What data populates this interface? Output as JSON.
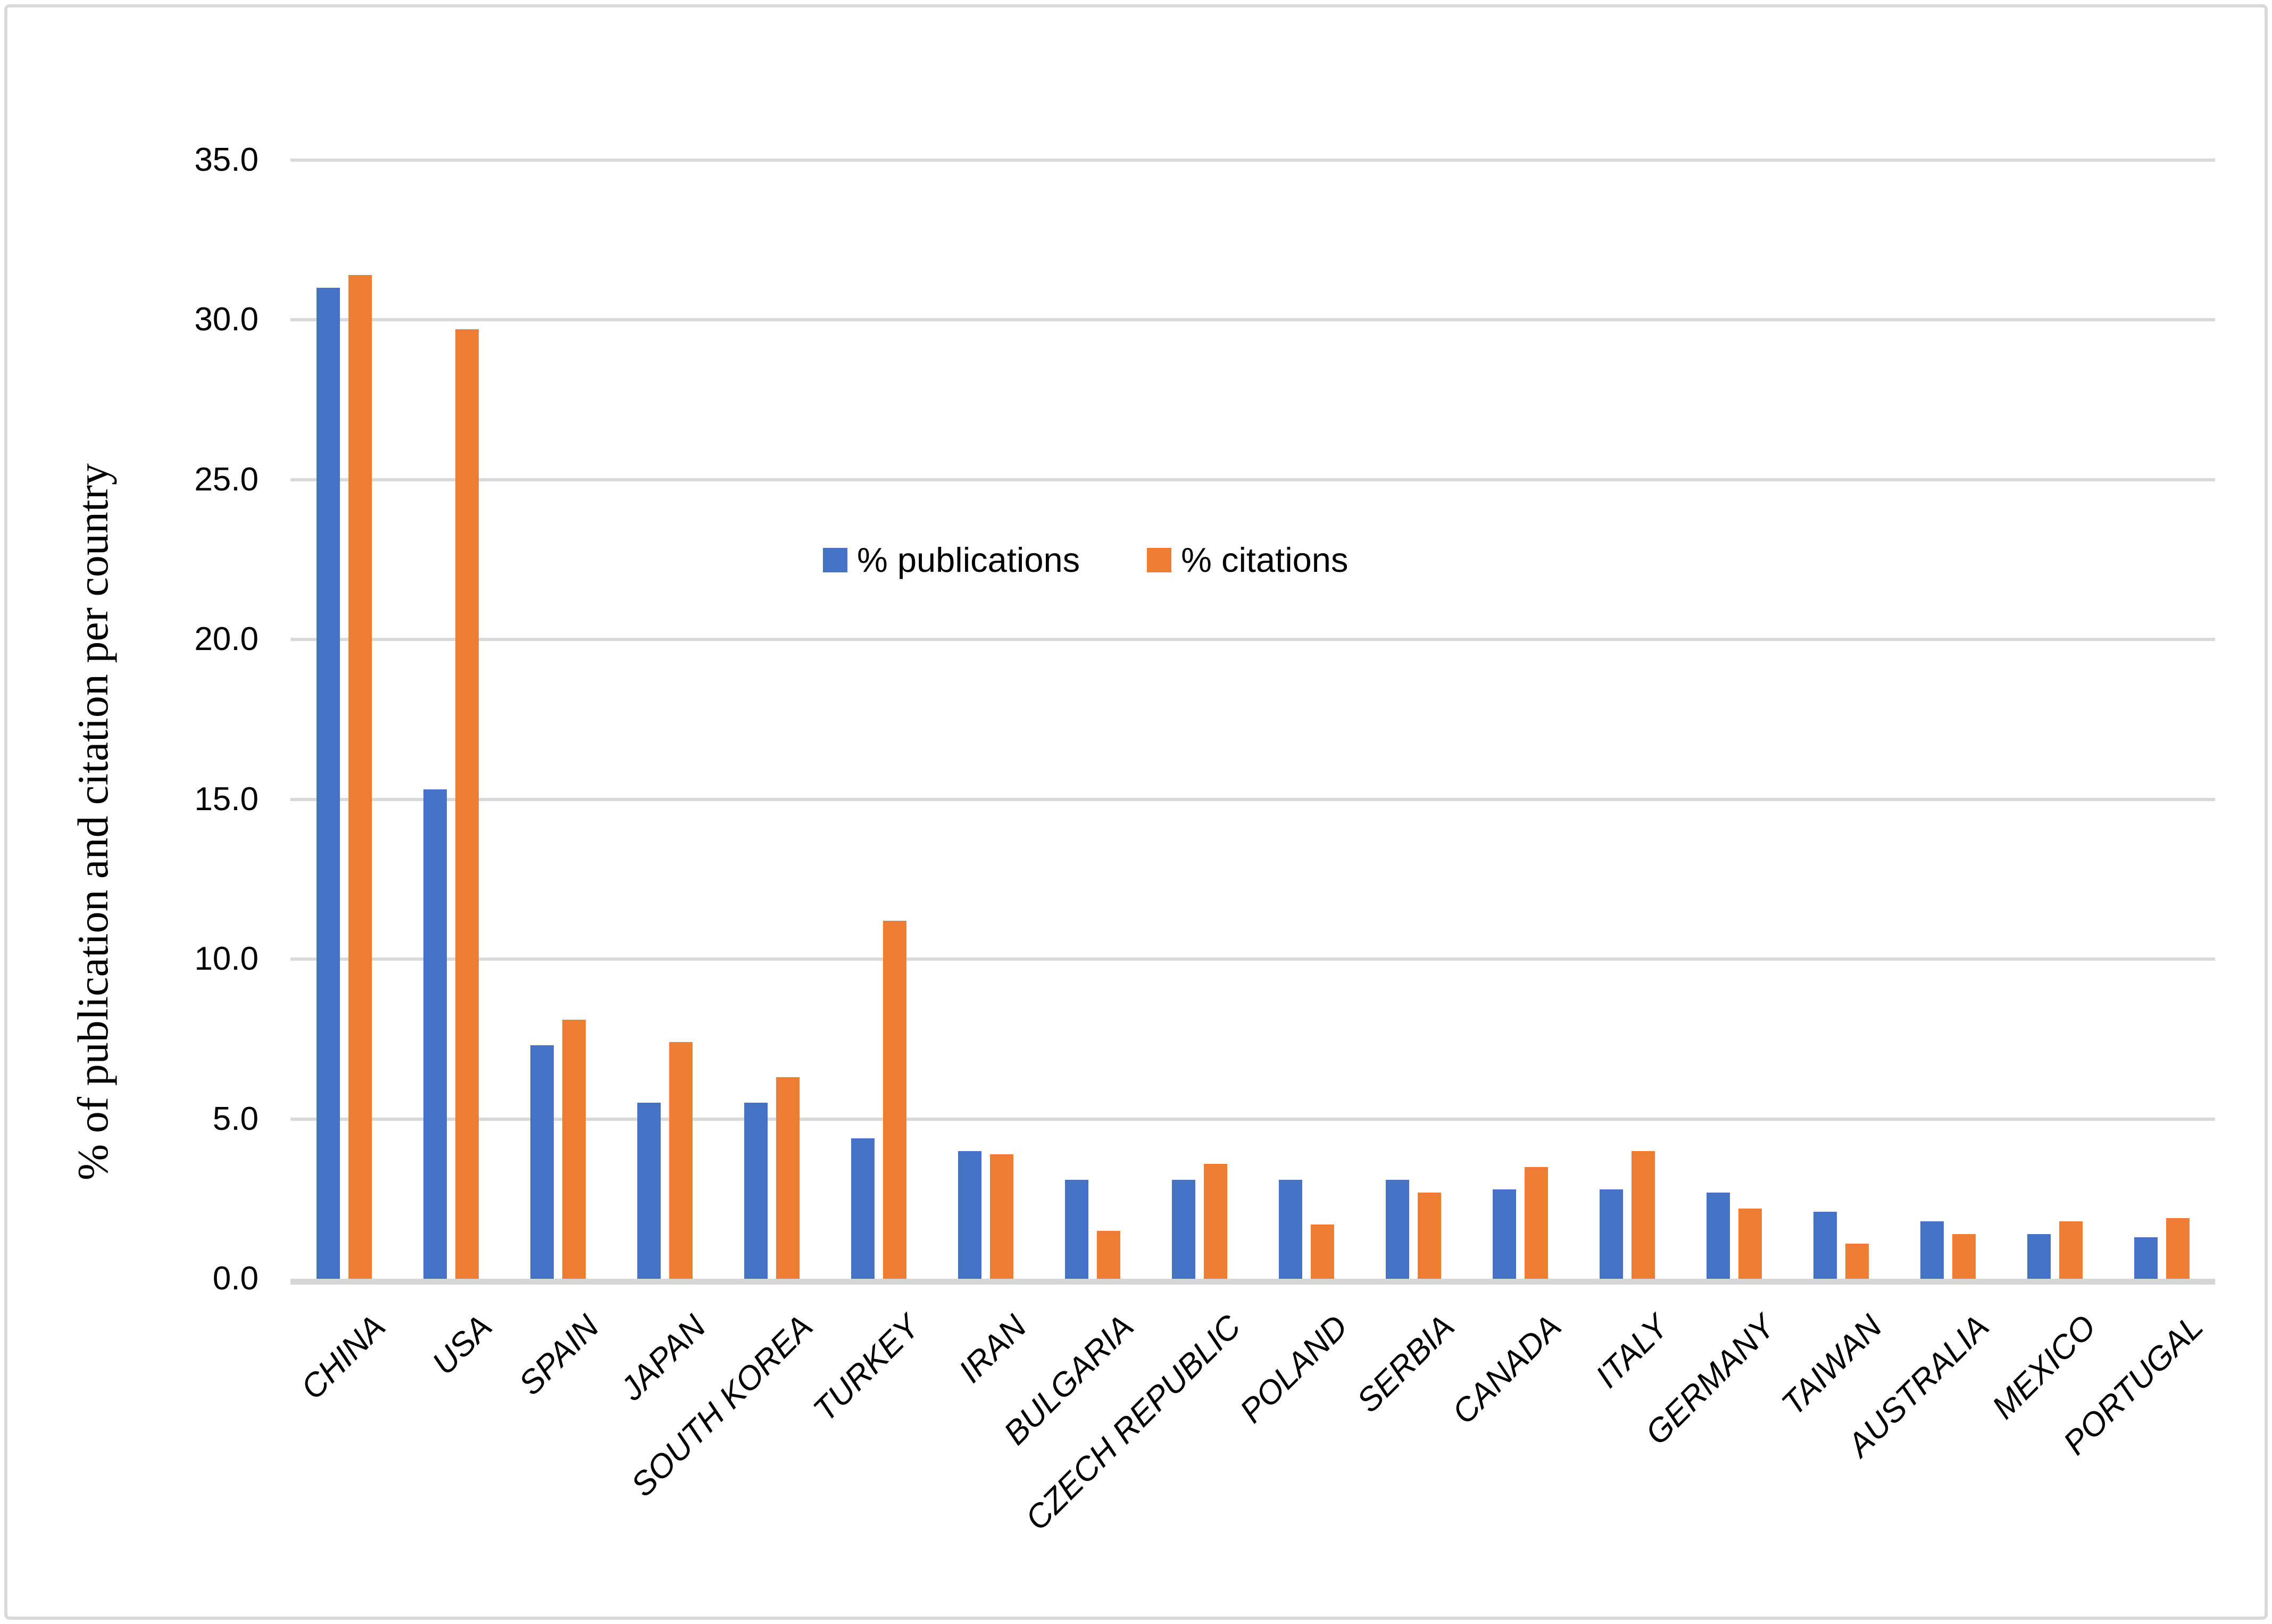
{
  "figure": {
    "background": "#FFFFFF",
    "border_color": "#D9D9D9",
    "gridline_color": "#D9D9D9",
    "axis_line_color": "#D6D6D6"
  },
  "chart_data": {
    "type": "bar",
    "title": "",
    "xlabel": "",
    "ylabel": "% of publication and citation per country",
    "ylim": [
      0,
      35
    ],
    "ytick_step": 5,
    "ytick_labels": [
      "0.0",
      "5.0",
      "10.0",
      "15.0",
      "20.0",
      "25.0",
      "30.0",
      "35.0"
    ],
    "grid": true,
    "legend_position": "inside-top-center",
    "categories": [
      "CHINA",
      "USA",
      "SPAIN",
      "JAPAN",
      "SOUTH KOREA",
      "TURKEY",
      "IRAN",
      "BULGARIA",
      "CZECH REPUBLIC",
      "POLAND",
      "SERBIA",
      "CANADA",
      "ITALY",
      "GERMANY",
      "TAIWAN",
      "AUSTRALIA",
      "MEXICO",
      "PORTUGAL"
    ],
    "series": [
      {
        "name": "% publications",
        "color": "#4472C4",
        "values": [
          31.0,
          15.3,
          7.3,
          5.5,
          5.5,
          4.4,
          4.0,
          3.1,
          3.1,
          3.1,
          3.1,
          2.8,
          2.8,
          2.7,
          2.1,
          1.8,
          1.4,
          1.3
        ]
      },
      {
        "name": "% citations",
        "color": "#ED7D31",
        "values": [
          31.4,
          29.7,
          8.1,
          7.4,
          6.3,
          11.2,
          3.9,
          1.5,
          3.6,
          1.7,
          2.7,
          3.5,
          4.0,
          2.2,
          1.1,
          1.4,
          1.8,
          1.9
        ]
      }
    ]
  }
}
